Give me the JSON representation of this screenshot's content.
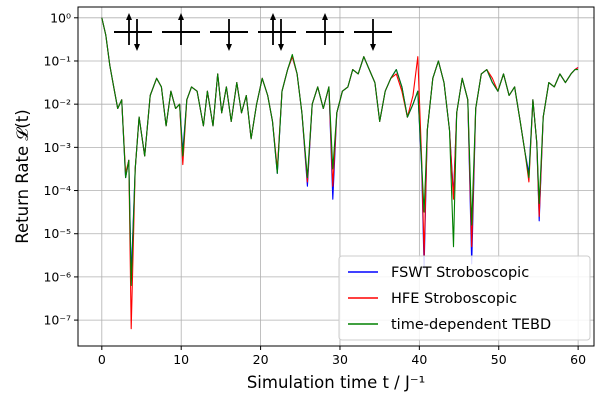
{
  "chart_data": {
    "type": "line",
    "xlabel": "Simulation time   t  /  J⁻¹",
    "ylabel": "Return Rate 𝓛(t)",
    "xlim": [
      -3,
      62
    ],
    "ylim_exponent": [
      -7.6,
      0.25
    ],
    "yscale": "log",
    "grid": true,
    "legend_position": "lower-right",
    "x_ticks": [
      "0",
      "10",
      "20",
      "30",
      "40",
      "50",
      "60"
    ],
    "y_ticks": [
      "10⁰",
      "10⁻¹",
      "10⁻²",
      "10⁻³",
      "10⁻⁴",
      "10⁻⁵",
      "10⁻⁶",
      "10⁻⁷"
    ],
    "x_tick_values": [
      0,
      10,
      20,
      30,
      40,
      50,
      60
    ],
    "y_tick_exponents": [
      0,
      -1,
      -2,
      -3,
      -4,
      -5,
      -6,
      -7
    ],
    "inset_spins": [
      "up-down",
      "up",
      "down",
      "up-down",
      "up",
      "down"
    ],
    "series": [
      {
        "name": "FSWT Stroboscopic",
        "color": "#0000ff",
        "points": [
          [
            0,
            0
          ],
          [
            0.5,
            -0.4
          ],
          [
            1,
            -1.1
          ],
          [
            1.5,
            -1.6
          ],
          [
            2,
            -2.1
          ],
          [
            2.5,
            -1.9
          ],
          [
            3,
            -3.7
          ],
          [
            3.4,
            -3.3
          ],
          [
            3.7,
            -6.0
          ],
          [
            4.2,
            -3.5
          ],
          [
            4.7,
            -2.3
          ],
          [
            5.4,
            -3.2
          ],
          [
            6.1,
            -1.8
          ],
          [
            6.9,
            -1.4
          ],
          [
            7.5,
            -1.6
          ],
          [
            8.1,
            -2.5
          ],
          [
            8.7,
            -1.7
          ],
          [
            9.3,
            -2.1
          ],
          [
            9.8,
            -2.0
          ],
          [
            10.2,
            -3.1
          ],
          [
            10.7,
            -1.9
          ],
          [
            11.3,
            -1.6
          ],
          [
            12,
            -1.7
          ],
          [
            12.8,
            -2.5
          ],
          [
            13.3,
            -1.7
          ],
          [
            14,
            -2.5
          ],
          [
            14.6,
            -1.3
          ],
          [
            15.1,
            -2.2
          ],
          [
            15.7,
            -1.6
          ],
          [
            16.3,
            -2.4
          ],
          [
            17,
            -1.5
          ],
          [
            17.6,
            -2.2
          ],
          [
            18.2,
            -1.8
          ],
          [
            18.8,
            -2.8
          ],
          [
            19.5,
            -2.0
          ],
          [
            20.2,
            -1.4
          ],
          [
            20.9,
            -1.8
          ],
          [
            21.5,
            -2.4
          ],
          [
            22.1,
            -3.6
          ],
          [
            22.7,
            -1.7
          ],
          [
            23.4,
            -1.2
          ],
          [
            24,
            -0.9
          ],
          [
            24.6,
            -1.3
          ],
          [
            25.2,
            -2.2
          ],
          [
            25.9,
            -3.9
          ],
          [
            26.5,
            -2.0
          ],
          [
            27.2,
            -1.6
          ],
          [
            27.9,
            -2.1
          ],
          [
            28.6,
            -1.6
          ],
          [
            29.1,
            -4.2
          ],
          [
            29.6,
            -2.2
          ],
          [
            30.3,
            -1.7
          ],
          [
            31,
            -1.6
          ],
          [
            31.6,
            -1.2
          ],
          [
            32.3,
            -1.3
          ],
          [
            33,
            -0.9
          ],
          [
            33.7,
            -1.2
          ],
          [
            34.4,
            -1.5
          ],
          [
            35,
            -2.4
          ],
          [
            35.7,
            -1.7
          ],
          [
            36.4,
            -1.4
          ],
          [
            37.1,
            -1.2
          ],
          [
            37.8,
            -1.6
          ],
          [
            38.5,
            -2.3
          ],
          [
            39.2,
            -2.0
          ],
          [
            39.8,
            -1.7
          ],
          [
            40.3,
            -3.5
          ],
          [
            40.6,
            -5.8
          ],
          [
            41,
            -2.6
          ],
          [
            41.7,
            -1.4
          ],
          [
            42.4,
            -1.0
          ],
          [
            43.1,
            -1.5
          ],
          [
            43.8,
            -2.6
          ],
          [
            44.3,
            -4.1
          ],
          [
            44.7,
            -2.2
          ],
          [
            45.4,
            -1.4
          ],
          [
            46.1,
            -1.9
          ],
          [
            46.6,
            -5.7
          ],
          [
            47.1,
            -2.1
          ],
          [
            47.8,
            -1.3
          ],
          [
            48.5,
            -1.2
          ],
          [
            49.2,
            -1.5
          ],
          [
            49.9,
            -1.7
          ],
          [
            50.6,
            -1.3
          ],
          [
            51.3,
            -1.8
          ],
          [
            52,
            -1.6
          ],
          [
            52.7,
            -2.4
          ],
          [
            53.3,
            -3.1
          ],
          [
            53.8,
            -3.6
          ],
          [
            54.3,
            -1.9
          ],
          [
            54.8,
            -2.9
          ],
          [
            55.1,
            -4.7
          ],
          [
            55.6,
            -2.3
          ],
          [
            56.3,
            -1.5
          ],
          [
            57,
            -1.6
          ],
          [
            57.7,
            -1.3
          ],
          [
            58.4,
            -1.5
          ],
          [
            59.1,
            -1.3
          ],
          [
            59.6,
            -1.2
          ],
          [
            60,
            -1.15
          ]
        ]
      },
      {
        "name": "HFE Stroboscopic",
        "color": "#ff0000",
        "points": [
          [
            0,
            0
          ],
          [
            0.5,
            -0.4
          ],
          [
            1,
            -1.1
          ],
          [
            1.5,
            -1.6
          ],
          [
            2,
            -2.1
          ],
          [
            2.5,
            -1.9
          ],
          [
            3,
            -3.6
          ],
          [
            3.4,
            -3.3
          ],
          [
            3.7,
            -7.2
          ],
          [
            4.2,
            -3.5
          ],
          [
            4.7,
            -2.3
          ],
          [
            5.4,
            -3.2
          ],
          [
            6.1,
            -1.8
          ],
          [
            6.9,
            -1.4
          ],
          [
            7.5,
            -1.6
          ],
          [
            8.1,
            -2.5
          ],
          [
            8.7,
            -1.7
          ],
          [
            9.3,
            -2.1
          ],
          [
            9.8,
            -2.0
          ],
          [
            10.2,
            -3.4
          ],
          [
            10.7,
            -1.9
          ],
          [
            11.3,
            -1.6
          ],
          [
            12,
            -1.7
          ],
          [
            12.8,
            -2.5
          ],
          [
            13.3,
            -1.7
          ],
          [
            14,
            -2.5
          ],
          [
            14.6,
            -1.3
          ],
          [
            15.1,
            -2.2
          ],
          [
            15.7,
            -1.6
          ],
          [
            16.3,
            -2.4
          ],
          [
            17,
            -1.5
          ],
          [
            17.6,
            -2.2
          ],
          [
            18.2,
            -1.8
          ],
          [
            18.8,
            -2.8
          ],
          [
            19.5,
            -2.0
          ],
          [
            20.2,
            -1.4
          ],
          [
            20.9,
            -1.8
          ],
          [
            21.5,
            -2.4
          ],
          [
            22.1,
            -3.5
          ],
          [
            22.7,
            -1.7
          ],
          [
            23.4,
            -1.2
          ],
          [
            24,
            -0.9
          ],
          [
            24.6,
            -1.3
          ],
          [
            25.2,
            -2.2
          ],
          [
            25.9,
            -3.8
          ],
          [
            26.5,
            -2.0
          ],
          [
            27.2,
            -1.6
          ],
          [
            27.9,
            -2.1
          ],
          [
            28.6,
            -1.6
          ],
          [
            29.1,
            -3.9
          ],
          [
            29.6,
            -2.2
          ],
          [
            30.3,
            -1.7
          ],
          [
            31,
            -1.6
          ],
          [
            31.6,
            -1.2
          ],
          [
            32.3,
            -1.3
          ],
          [
            33,
            -0.9
          ],
          [
            33.7,
            -1.2
          ],
          [
            34.4,
            -1.5
          ],
          [
            35,
            -2.4
          ],
          [
            35.7,
            -1.7
          ],
          [
            36.4,
            -1.4
          ],
          [
            37.1,
            -1.3
          ],
          [
            37.8,
            -1.7
          ],
          [
            38.5,
            -2.3
          ],
          [
            39.2,
            -1.8
          ],
          [
            39.8,
            -0.9
          ],
          [
            40.3,
            -3.3
          ],
          [
            40.6,
            -5.5
          ],
          [
            41,
            -2.6
          ],
          [
            41.7,
            -1.4
          ],
          [
            42.4,
            -1.0
          ],
          [
            43.1,
            -1.5
          ],
          [
            43.8,
            -2.6
          ],
          [
            44.3,
            -4.2
          ],
          [
            44.7,
            -2.2
          ],
          [
            45.4,
            -1.4
          ],
          [
            46.1,
            -1.9
          ],
          [
            46.6,
            -5.3
          ],
          [
            47.1,
            -2.1
          ],
          [
            47.8,
            -1.3
          ],
          [
            48.5,
            -1.2
          ],
          [
            49.2,
            -1.4
          ],
          [
            49.9,
            -1.7
          ],
          [
            50.6,
            -1.3
          ],
          [
            51.3,
            -1.8
          ],
          [
            52,
            -1.6
          ],
          [
            52.7,
            -2.4
          ],
          [
            53.3,
            -3.1
          ],
          [
            53.8,
            -3.8
          ],
          [
            54.3,
            -1.9
          ],
          [
            54.8,
            -2.9
          ],
          [
            55.1,
            -4.6
          ],
          [
            55.6,
            -2.3
          ],
          [
            56.3,
            -1.5
          ],
          [
            57,
            -1.6
          ],
          [
            57.7,
            -1.3
          ],
          [
            58.4,
            -1.5
          ],
          [
            59.1,
            -1.3
          ],
          [
            59.6,
            -1.2
          ],
          [
            60,
            -1.15
          ]
        ]
      },
      {
        "name": "time-dependent TEBD",
        "color": "#008000",
        "points": [
          [
            0,
            0
          ],
          [
            0.5,
            -0.4
          ],
          [
            1,
            -1.1
          ],
          [
            1.5,
            -1.6
          ],
          [
            2,
            -2.1
          ],
          [
            2.5,
            -1.9
          ],
          [
            3,
            -3.7
          ],
          [
            3.4,
            -3.3
          ],
          [
            3.7,
            -6.2
          ],
          [
            4.2,
            -3.5
          ],
          [
            4.7,
            -2.3
          ],
          [
            5.4,
            -3.2
          ],
          [
            6.1,
            -1.8
          ],
          [
            6.9,
            -1.4
          ],
          [
            7.5,
            -1.6
          ],
          [
            8.1,
            -2.5
          ],
          [
            8.7,
            -1.7
          ],
          [
            9.3,
            -2.1
          ],
          [
            9.8,
            -2.0
          ],
          [
            10.2,
            -3.2
          ],
          [
            10.7,
            -1.9
          ],
          [
            11.3,
            -1.6
          ],
          [
            12,
            -1.7
          ],
          [
            12.8,
            -2.5
          ],
          [
            13.3,
            -1.7
          ],
          [
            14,
            -2.5
          ],
          [
            14.6,
            -1.3
          ],
          [
            15.1,
            -2.2
          ],
          [
            15.7,
            -1.6
          ],
          [
            16.3,
            -2.4
          ],
          [
            17,
            -1.5
          ],
          [
            17.6,
            -2.2
          ],
          [
            18.2,
            -1.8
          ],
          [
            18.8,
            -2.8
          ],
          [
            19.5,
            -2.0
          ],
          [
            20.2,
            -1.4
          ],
          [
            20.9,
            -1.8
          ],
          [
            21.5,
            -2.4
          ],
          [
            22.1,
            -3.6
          ],
          [
            22.7,
            -1.7
          ],
          [
            23.4,
            -1.2
          ],
          [
            24,
            -0.85
          ],
          [
            24.6,
            -1.3
          ],
          [
            25.2,
            -2.2
          ],
          [
            25.9,
            -3.7
          ],
          [
            26.5,
            -2.0
          ],
          [
            27.2,
            -1.6
          ],
          [
            27.9,
            -2.1
          ],
          [
            28.6,
            -1.6
          ],
          [
            29.1,
            -3.5
          ],
          [
            29.6,
            -2.2
          ],
          [
            30.3,
            -1.7
          ],
          [
            31,
            -1.6
          ],
          [
            31.6,
            -1.2
          ],
          [
            32.3,
            -1.3
          ],
          [
            33,
            -0.9
          ],
          [
            33.7,
            -1.2
          ],
          [
            34.4,
            -1.5
          ],
          [
            35,
            -2.4
          ],
          [
            35.7,
            -1.7
          ],
          [
            36.4,
            -1.4
          ],
          [
            37.1,
            -1.2
          ],
          [
            37.8,
            -1.6
          ],
          [
            38.5,
            -2.3
          ],
          [
            39.2,
            -2.0
          ],
          [
            39.8,
            -1.7
          ],
          [
            40.3,
            -3.4
          ],
          [
            40.6,
            -4.5
          ],
          [
            41,
            -2.6
          ],
          [
            41.7,
            -1.4
          ],
          [
            42.4,
            -1.0
          ],
          [
            43.1,
            -1.5
          ],
          [
            43.8,
            -2.6
          ],
          [
            44.3,
            -5.3
          ],
          [
            44.7,
            -2.2
          ],
          [
            45.4,
            -1.4
          ],
          [
            46.1,
            -1.9
          ],
          [
            46.6,
            -4.8
          ],
          [
            47.1,
            -2.1
          ],
          [
            47.8,
            -1.3
          ],
          [
            48.5,
            -1.2
          ],
          [
            49.2,
            -1.5
          ],
          [
            49.9,
            -1.7
          ],
          [
            50.6,
            -1.3
          ],
          [
            51.3,
            -1.8
          ],
          [
            52,
            -1.6
          ],
          [
            52.7,
            -2.4
          ],
          [
            53.3,
            -3.1
          ],
          [
            53.8,
            -3.7
          ],
          [
            54.3,
            -1.9
          ],
          [
            54.8,
            -2.9
          ],
          [
            55.1,
            -4.3
          ],
          [
            55.6,
            -2.3
          ],
          [
            56.3,
            -1.5
          ],
          [
            57,
            -1.6
          ],
          [
            57.7,
            -1.3
          ],
          [
            58.4,
            -1.5
          ],
          [
            59.1,
            -1.3
          ],
          [
            59.6,
            -1.2
          ],
          [
            60,
            -1.2
          ]
        ]
      }
    ]
  }
}
